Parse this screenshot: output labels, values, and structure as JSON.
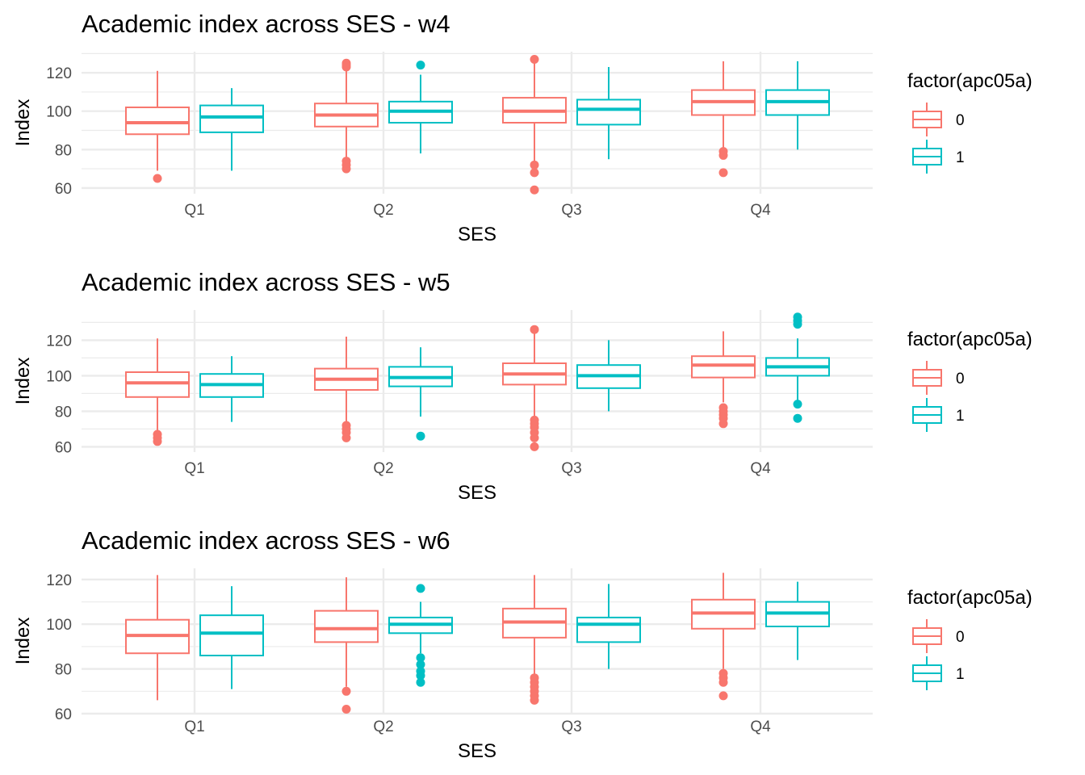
{
  "colors": {
    "group_0": "#F8766D",
    "group_1": "#00BFC4",
    "grid": "#EBEBEB"
  },
  "chart_data": [
    {
      "type": "boxplot",
      "title": "Academic index across SES - w4",
      "xlabel": "SES",
      "ylabel": "Index",
      "ylim": [
        57,
        131
      ],
      "yticks": [
        60,
        80,
        100,
        120
      ],
      "grid": true,
      "legend_position": "right",
      "legend_title": "factor(apc05a)",
      "legend_labels": [
        "0",
        "1"
      ],
      "categories": [
        "Q1",
        "Q2",
        "Q3",
        "Q4"
      ],
      "series": [
        {
          "name": "0",
          "boxes": [
            {
              "lower": 69,
              "q1": 88,
              "median": 94,
              "q3": 102,
              "upper": 121,
              "outliers": [
                65
              ]
            },
            {
              "lower": 75,
              "q1": 92,
              "median": 98,
              "q3": 104,
              "upper": 122,
              "outliers": [
                70,
                72,
                74,
                123,
                124,
                125
              ]
            },
            {
              "lower": 74,
              "q1": 94,
              "median": 100,
              "q3": 107,
              "upper": 125,
              "outliers": [
                59,
                68,
                72,
                127
              ]
            },
            {
              "lower": 81,
              "q1": 98,
              "median": 105,
              "q3": 111,
              "upper": 126,
              "outliers": [
                68,
                77,
                79
              ]
            }
          ]
        },
        {
          "name": "1",
          "boxes": [
            {
              "lower": 69,
              "q1": 89,
              "median": 97,
              "q3": 103,
              "upper": 112,
              "outliers": []
            },
            {
              "lower": 78,
              "q1": 94,
              "median": 100,
              "q3": 105,
              "upper": 119,
              "outliers": [
                124
              ]
            },
            {
              "lower": 75,
              "q1": 93,
              "median": 101,
              "q3": 106,
              "upper": 123,
              "outliers": []
            },
            {
              "lower": 80,
              "q1": 98,
              "median": 105,
              "q3": 111,
              "upper": 126,
              "outliers": []
            }
          ]
        }
      ]
    },
    {
      "type": "boxplot",
      "title": "Academic index across SES - w5",
      "xlabel": "SES",
      "ylabel": "Index",
      "ylim": [
        57,
        137
      ],
      "yticks": [
        60,
        80,
        100,
        120
      ],
      "grid": true,
      "legend_position": "right",
      "legend_title": "factor(apc05a)",
      "legend_labels": [
        "0",
        "1"
      ],
      "categories": [
        "Q1",
        "Q2",
        "Q3",
        "Q4"
      ],
      "series": [
        {
          "name": "0",
          "boxes": [
            {
              "lower": 69,
              "q1": 88,
              "median": 96,
              "q3": 102,
              "upper": 121,
              "outliers": [
                63,
                65,
                67
              ]
            },
            {
              "lower": 73,
              "q1": 92,
              "median": 98,
              "q3": 104,
              "upper": 122,
              "outliers": [
                65,
                68,
                70,
                72
              ]
            },
            {
              "lower": 77,
              "q1": 95,
              "median": 101,
              "q3": 107,
              "upper": 124,
              "outliers": [
                60,
                65,
                68,
                71,
                73,
                75,
                126
              ]
            },
            {
              "lower": 85,
              "q1": 99,
              "median": 106,
              "q3": 111,
              "upper": 125,
              "outliers": [
                73,
                76,
                78,
                80,
                82
              ]
            }
          ]
        },
        {
          "name": "1",
          "boxes": [
            {
              "lower": 74,
              "q1": 88,
              "median": 95,
              "q3": 101,
              "upper": 111,
              "outliers": []
            },
            {
              "lower": 77,
              "q1": 94,
              "median": 99,
              "q3": 105,
              "upper": 116,
              "outliers": [
                66
              ]
            },
            {
              "lower": 80,
              "q1": 93,
              "median": 100,
              "q3": 106,
              "upper": 120,
              "outliers": []
            },
            {
              "lower": 86,
              "q1": 100,
              "median": 105,
              "q3": 110,
              "upper": 121,
              "outliers": [
                76,
                84,
                129,
                131,
                133
              ]
            }
          ]
        }
      ]
    },
    {
      "type": "boxplot",
      "title": "Academic index across SES - w6",
      "xlabel": "SES",
      "ylabel": "Index",
      "ylim": [
        60,
        125
      ],
      "yticks": [
        60,
        80,
        100,
        120
      ],
      "grid": true,
      "legend_position": "right",
      "legend_title": "factor(apc05a)",
      "legend_labels": [
        "0",
        "1"
      ],
      "categories": [
        "Q1",
        "Q2",
        "Q3",
        "Q4"
      ],
      "series": [
        {
          "name": "0",
          "boxes": [
            {
              "lower": 66,
              "q1": 87,
              "median": 95,
              "q3": 102,
              "upper": 122,
              "outliers": []
            },
            {
              "lower": 72,
              "q1": 92,
              "median": 98,
              "q3": 106,
              "upper": 121,
              "outliers": [
                62,
                70
              ]
            },
            {
              "lower": 77,
              "q1": 94,
              "median": 101,
              "q3": 107,
              "upper": 122,
              "outliers": [
                66,
                68,
                70,
                72,
                74,
                76
              ]
            },
            {
              "lower": 80,
              "q1": 98,
              "median": 105,
              "q3": 111,
              "upper": 123,
              "outliers": [
                68,
                74,
                76,
                78
              ]
            }
          ]
        },
        {
          "name": "1",
          "boxes": [
            {
              "lower": 71,
              "q1": 86,
              "median": 96,
              "q3": 104,
              "upper": 117,
              "outliers": []
            },
            {
              "lower": 87,
              "q1": 96,
              "median": 100,
              "q3": 103,
              "upper": 110,
              "outliers": [
                74,
                77,
                79,
                82,
                85,
                116
              ]
            },
            {
              "lower": 80,
              "q1": 92,
              "median": 100,
              "q3": 103,
              "upper": 118,
              "outliers": []
            },
            {
              "lower": 84,
              "q1": 99,
              "median": 105,
              "q3": 110,
              "upper": 119,
              "outliers": []
            }
          ]
        }
      ]
    }
  ]
}
